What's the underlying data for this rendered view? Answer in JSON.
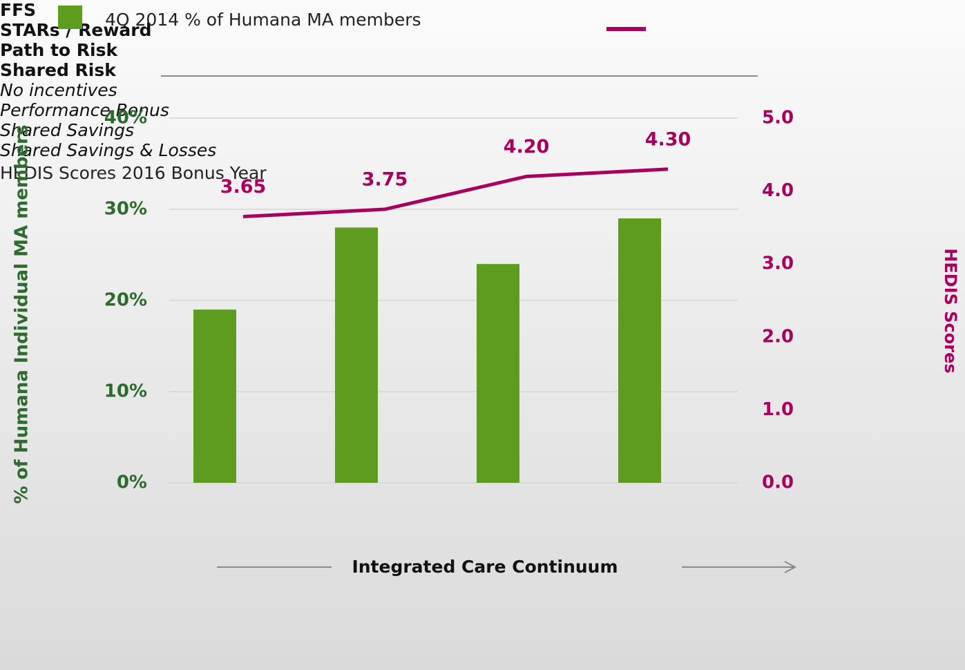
{
  "chart_data": {
    "type": "bar_line",
    "xlabel": "Integrated Care Continuum",
    "ylabel": "% of Humana Individual MA members",
    "y2label": "HEDIS Scores",
    "categories": [
      "FFS",
      "STARs /\nReward",
      "Path to Risk",
      "Shared Risk"
    ],
    "descriptions": [
      "No\nincentives",
      "Performance\nBonus",
      "Shared\nSavings",
      "Shared\nSavings &\nLosses"
    ],
    "series": [
      {
        "name": "4Q 2014 % of Humana MA members",
        "type": "bar",
        "color": "#5e9c20",
        "values": [
          19,
          28,
          24,
          29
        ]
      },
      {
        "name": "HEDIS Scores\n2016 Bonus Year",
        "type": "line",
        "axis": "y2",
        "color": "#a8005f",
        "values": [
          3.65,
          3.75,
          4.2,
          4.3
        ],
        "value_labels": [
          "3.65",
          "3.75",
          "4.20",
          "4.30"
        ]
      }
    ],
    "ylim": [
      0,
      40
    ],
    "yticks": [
      {
        "value": 0,
        "label": "0%"
      },
      {
        "value": 10,
        "label": "10%"
      },
      {
        "value": 20,
        "label": "20%"
      },
      {
        "value": 30,
        "label": "30%"
      },
      {
        "value": 40,
        "label": "40%"
      }
    ],
    "y2lim": [
      0,
      5
    ],
    "y2ticks": [
      {
        "value": 0,
        "label": "0.0"
      },
      {
        "value": 1,
        "label": "1.0"
      },
      {
        "value": 2,
        "label": "2.0"
      },
      {
        "value": 3,
        "label": "3.0"
      },
      {
        "value": 4,
        "label": "4.0"
      },
      {
        "value": 5,
        "label": "5.0"
      }
    ],
    "grid": true
  }
}
